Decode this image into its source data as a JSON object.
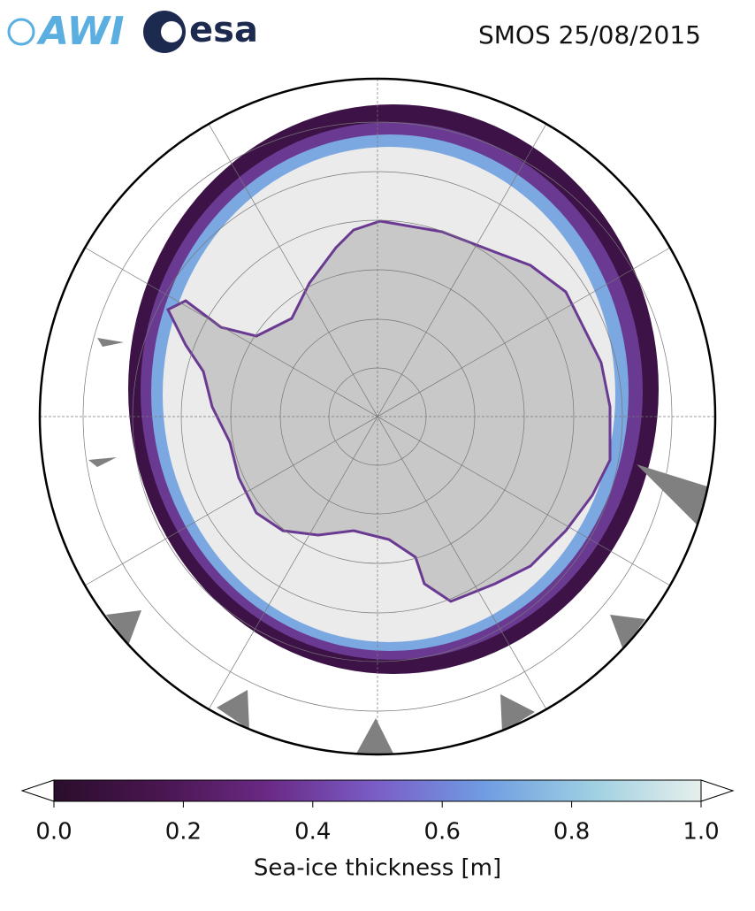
{
  "header": {
    "logos": [
      "AWI",
      "esa"
    ],
    "title": "SMOS 25/08/2015"
  },
  "colorbar": {
    "label": "Sea-ice thickness [m]",
    "lim": [
      0,
      1
    ],
    "ticks": [
      {
        "value": 0,
        "label": "0.0"
      },
      0.2,
      0.4,
      0.6,
      0.8,
      {
        "value": 1,
        "label": "1.0"
      }
    ],
    "colormap": [
      "#2a0d2c",
      "#4a1650",
      "#6a2a86",
      "#7a5ec8",
      "#6f9de2",
      "#9fd0e2",
      "#e6efec"
    ],
    "extend": "both"
  }
}
